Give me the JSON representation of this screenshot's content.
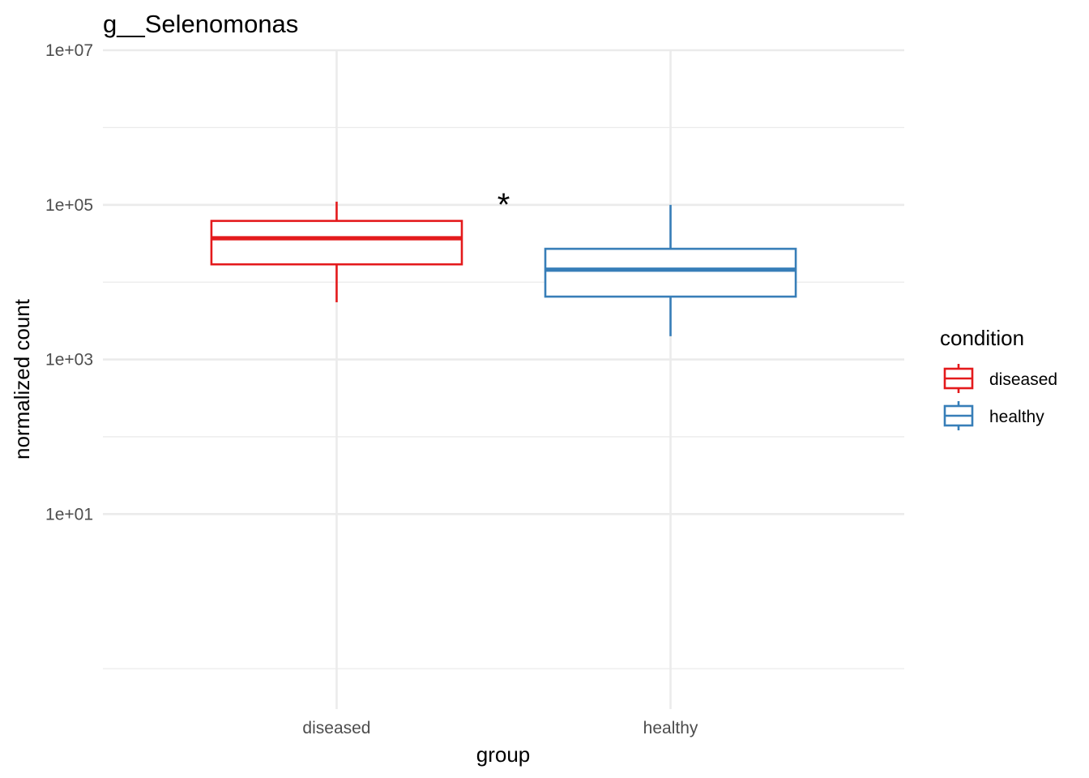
{
  "chart_data": {
    "type": "boxplot",
    "title": "g__Selenomonas",
    "xlabel": "group",
    "ylabel": "normalized count",
    "y_scale": "log10",
    "ylim": [
      0.03,
      10000000
    ],
    "categories": [
      "diseased",
      "healthy"
    ],
    "y_ticks": [
      {
        "value": 10,
        "label": "1e+01"
      },
      {
        "value": 1000,
        "label": "1e+03"
      },
      {
        "value": 100000,
        "label": "1e+05"
      },
      {
        "value": 10000000,
        "label": "1e+07"
      }
    ],
    "y_minor_ticks": [
      0.1,
      100,
      10000,
      1000000
    ],
    "series": [
      {
        "name": "diseased",
        "color": "#e41a1c",
        "stats": {
          "whisker_low": 5500,
          "q1": 17000,
          "median": 37000,
          "q3": 62000,
          "whisker_high": 110000
        }
      },
      {
        "name": "healthy",
        "color": "#377eb8",
        "stats": {
          "whisker_low": 2000,
          "q1": 6500,
          "median": 14500,
          "q3": 27000,
          "whisker_high": 100000
        }
      }
    ],
    "annotations": [
      {
        "text": "*",
        "between": [
          "diseased",
          "healthy"
        ],
        "value": 150000
      }
    ],
    "legend": {
      "title": "condition",
      "position": "right",
      "entries": [
        "diseased",
        "healthy"
      ]
    },
    "grid": true
  }
}
